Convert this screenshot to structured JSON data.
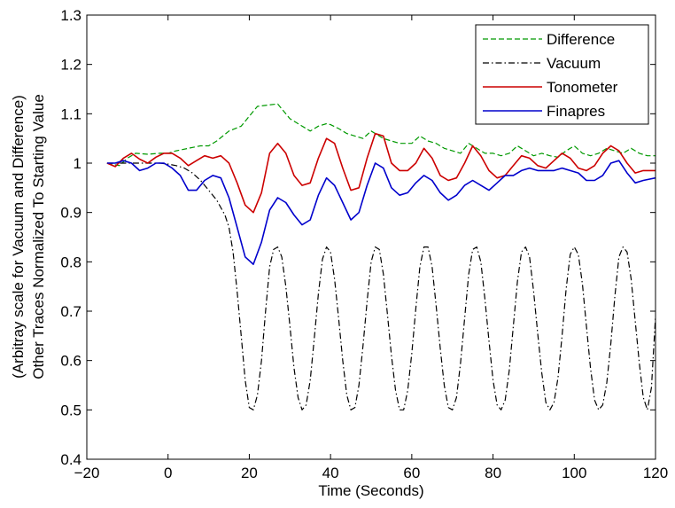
{
  "chart_data": {
    "type": "line",
    "title": "",
    "xlabel": "Time (Seconds)",
    "ylabel_lines": [
      "(Arbitray scale for Vacuum and Difference)",
      "Other Traces Normalized To Starting Value"
    ],
    "xlim": [
      -20,
      120
    ],
    "ylim": [
      0.4,
      1.3
    ],
    "xticks": [
      -20,
      0,
      20,
      40,
      60,
      80,
      100,
      120
    ],
    "xtick_labels": [
      "−20",
      "0",
      "20",
      "40",
      "60",
      "80",
      "100",
      "120"
    ],
    "yticks": [
      0.4,
      0.5,
      0.6,
      0.7,
      0.8,
      0.9,
      1.0,
      1.1,
      1.2,
      1.3
    ],
    "ytick_labels": [
      "0.4",
      "0.5",
      "0.6",
      "0.7",
      "0.8",
      "0.9",
      "1",
      "1.1",
      "1.2",
      "1.3"
    ],
    "grid": false,
    "legend_position": "top-right",
    "series": [
      {
        "name": "Difference",
        "color": "#009900",
        "style": "dashed",
        "x": [
          -15,
          -12,
          -10,
          -8,
          -5,
          -2,
          0,
          2,
          5,
          8,
          10,
          12,
          15,
          18,
          20,
          22,
          25,
          27,
          28,
          30,
          32,
          35,
          37,
          39,
          40,
          42,
          44,
          46,
          48,
          50,
          51,
          53,
          55,
          57,
          60,
          62,
          64,
          66,
          68,
          70,
          72,
          74,
          76,
          78,
          80,
          82,
          84,
          86,
          88,
          90,
          92,
          94,
          96,
          98,
          100,
          102,
          104,
          106,
          108,
          110,
          112,
          114,
          116,
          118,
          120
        ],
        "y": [
          1.0,
          0.995,
          1.01,
          1.02,
          1.018,
          1.02,
          1.02,
          1.025,
          1.03,
          1.035,
          1.035,
          1.045,
          1.065,
          1.075,
          1.095,
          1.115,
          1.118,
          1.12,
          1.11,
          1.09,
          1.08,
          1.065,
          1.075,
          1.08,
          1.078,
          1.07,
          1.06,
          1.055,
          1.05,
          1.065,
          1.06,
          1.05,
          1.045,
          1.04,
          1.04,
          1.055,
          1.045,
          1.04,
          1.03,
          1.025,
          1.02,
          1.04,
          1.03,
          1.02,
          1.02,
          1.015,
          1.02,
          1.035,
          1.025,
          1.015,
          1.02,
          1.015,
          1.012,
          1.025,
          1.035,
          1.02,
          1.015,
          1.02,
          1.03,
          1.025,
          1.02,
          1.03,
          1.02,
          1.015,
          1.015
        ]
      },
      {
        "name": "Vacuum",
        "color": "#000000",
        "style": "dashdot",
        "x": [
          -15,
          -12,
          -10,
          -8,
          -5,
          -2,
          0,
          2,
          4,
          6,
          8,
          10,
          12,
          14,
          15,
          16,
          17,
          18,
          19,
          20,
          21,
          22,
          23,
          24,
          25,
          26,
          27,
          28,
          29,
          30,
          31,
          32,
          33,
          34,
          35,
          36,
          37,
          38,
          39,
          40,
          41,
          42,
          43,
          44,
          45,
          46,
          47,
          48,
          49,
          50,
          51,
          52,
          53,
          54,
          55,
          56,
          57,
          58,
          59,
          60,
          61,
          62,
          63,
          64,
          65,
          66,
          67,
          68,
          69,
          70,
          71,
          72,
          73,
          74,
          75,
          76,
          77,
          78,
          79,
          80,
          81,
          82,
          83,
          84,
          85,
          86,
          87,
          88,
          89,
          90,
          91,
          92,
          93,
          94,
          95,
          96,
          97,
          98,
          99,
          100,
          101,
          102,
          103,
          104,
          105,
          106,
          107,
          108,
          109,
          110,
          111,
          112,
          113,
          114,
          115,
          116,
          117,
          118,
          119,
          120
        ],
        "y": [
          1.0,
          1.0,
          1.0,
          1.0,
          1.0,
          1.0,
          0.998,
          0.995,
          0.99,
          0.98,
          0.965,
          0.945,
          0.925,
          0.895,
          0.87,
          0.82,
          0.74,
          0.65,
          0.56,
          0.505,
          0.5,
          0.53,
          0.6,
          0.7,
          0.79,
          0.825,
          0.83,
          0.81,
          0.75,
          0.67,
          0.585,
          0.525,
          0.5,
          0.51,
          0.56,
          0.645,
          0.735,
          0.805,
          0.83,
          0.82,
          0.765,
          0.685,
          0.6,
          0.53,
          0.5,
          0.505,
          0.55,
          0.63,
          0.72,
          0.8,
          0.83,
          0.825,
          0.775,
          0.695,
          0.61,
          0.54,
          0.5,
          0.5,
          0.54,
          0.615,
          0.705,
          0.79,
          0.83,
          0.83,
          0.79,
          0.71,
          0.625,
          0.55,
          0.505,
          0.5,
          0.525,
          0.595,
          0.685,
          0.775,
          0.825,
          0.83,
          0.8,
          0.725,
          0.64,
          0.56,
          0.51,
          0.5,
          0.52,
          0.58,
          0.67,
          0.76,
          0.82,
          0.83,
          0.81,
          0.74,
          0.655,
          0.575,
          0.515,
          0.5,
          0.515,
          0.565,
          0.65,
          0.745,
          0.815,
          0.83,
          0.815,
          0.755,
          0.67,
          0.585,
          0.52,
          0.5,
          0.51,
          0.555,
          0.635,
          0.73,
          0.81,
          0.83,
          0.82,
          0.765,
          0.68,
          0.595,
          0.525,
          0.5,
          0.545,
          0.69
        ]
      },
      {
        "name": "Tonometer",
        "color": "#cc0000",
        "style": "solid",
        "x": [
          -15,
          -13,
          -11,
          -9,
          -7,
          -5,
          -3,
          -1,
          1,
          3,
          5,
          7,
          9,
          11,
          13,
          15,
          17,
          19,
          21,
          23,
          25,
          27,
          29,
          31,
          33,
          35,
          37,
          39,
          41,
          43,
          45,
          47,
          49,
          51,
          53,
          55,
          57,
          59,
          61,
          63,
          65,
          67,
          69,
          71,
          73,
          75,
          77,
          79,
          81,
          83,
          85,
          87,
          89,
          91,
          93,
          95,
          97,
          99,
          101,
          103,
          105,
          107,
          109,
          111,
          113,
          115,
          117,
          120
        ],
        "y": [
          1.0,
          0.993,
          1.01,
          1.02,
          1.008,
          1.0,
          1.012,
          1.02,
          1.02,
          1.01,
          0.995,
          1.005,
          1.015,
          1.01,
          1.015,
          1.0,
          0.96,
          0.915,
          0.9,
          0.94,
          1.02,
          1.04,
          1.02,
          0.975,
          0.955,
          0.96,
          1.01,
          1.05,
          1.04,
          0.99,
          0.945,
          0.95,
          1.01,
          1.06,
          1.055,
          1.0,
          0.985,
          0.985,
          1.0,
          1.03,
          1.01,
          0.975,
          0.965,
          0.97,
          1.0,
          1.035,
          1.015,
          0.985,
          0.97,
          0.975,
          0.995,
          1.015,
          1.01,
          0.995,
          0.99,
          1.005,
          1.02,
          1.01,
          0.99,
          0.985,
          0.995,
          1.02,
          1.035,
          1.025,
          1.0,
          0.98,
          0.985,
          0.985
        ]
      },
      {
        "name": "Finapres",
        "color": "#0000cc",
        "style": "solid",
        "x": [
          -15,
          -13,
          -11,
          -9,
          -7,
          -5,
          -3,
          -1,
          1,
          3,
          5,
          7,
          9,
          11,
          13,
          15,
          17,
          19,
          21,
          23,
          25,
          27,
          29,
          31,
          33,
          35,
          37,
          39,
          41,
          43,
          45,
          47,
          49,
          51,
          53,
          55,
          57,
          59,
          61,
          63,
          65,
          67,
          69,
          71,
          73,
          75,
          77,
          79,
          81,
          83,
          85,
          87,
          89,
          91,
          93,
          95,
          97,
          99,
          101,
          103,
          105,
          107,
          109,
          111,
          113,
          115,
          117,
          120
        ],
        "y": [
          1.0,
          1.0,
          1.005,
          1.0,
          0.985,
          0.99,
          1.0,
          1.0,
          0.99,
          0.975,
          0.945,
          0.945,
          0.965,
          0.975,
          0.97,
          0.93,
          0.87,
          0.81,
          0.795,
          0.84,
          0.905,
          0.93,
          0.92,
          0.895,
          0.875,
          0.885,
          0.935,
          0.97,
          0.955,
          0.92,
          0.885,
          0.9,
          0.955,
          1.0,
          0.99,
          0.95,
          0.935,
          0.94,
          0.96,
          0.975,
          0.965,
          0.94,
          0.925,
          0.935,
          0.955,
          0.965,
          0.955,
          0.945,
          0.96,
          0.975,
          0.975,
          0.985,
          0.99,
          0.985,
          0.985,
          0.985,
          0.99,
          0.985,
          0.98,
          0.965,
          0.965,
          0.975,
          1.0,
          1.005,
          0.98,
          0.96,
          0.965,
          0.97
        ]
      }
    ]
  }
}
